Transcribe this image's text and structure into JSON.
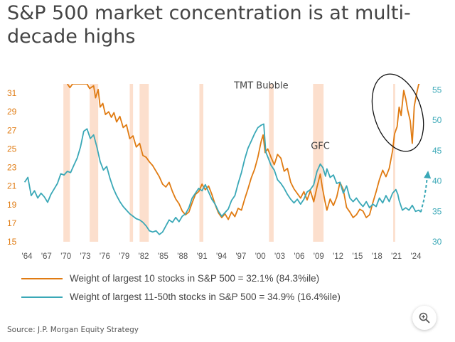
{
  "title": "S&P 500 market concentration is at multi-decade highs",
  "source": "Source: J.P. Morgan Equity Strategy",
  "legend": [
    {
      "label": "Weight of largest 10 stocks in S&P 500 = 32.1% (84.3%ile)",
      "color": "#e07b12"
    },
    {
      "label": "Weight of largest 11-50th stocks in S&P 500 = 34.9% (16.4%ile)",
      "color": "#3aa8b7"
    }
  ],
  "zoom": {
    "icon": "zoom-in-icon"
  },
  "chart_data": {
    "type": "line",
    "x_tick_labels": [
      "'64",
      "'67",
      "'70",
      "'73",
      "'76",
      "'79",
      "'82",
      "'85",
      "'88",
      "'91",
      "'94",
      "'97",
      "'00",
      "'03",
      "'06",
      "'09",
      "'12",
      "'15",
      "'18",
      "'21",
      "'24"
    ],
    "xlim": [
      1963.5,
      2025.5
    ],
    "y_left": {
      "ticks": [
        15,
        17,
        19,
        21,
        23,
        25,
        27,
        29,
        31
      ],
      "ylim": [
        15,
        32
      ],
      "color": "#e07b12"
    },
    "y_right": {
      "ticks": [
        30,
        35,
        40,
        45,
        50,
        55
      ],
      "ylim": [
        30,
        56
      ],
      "color": "#3aa8b7"
    },
    "recession_bands": [
      [
        1969.9,
        1970.9
      ],
      [
        1973.9,
        1975.2
      ],
      [
        1980.0,
        1980.5
      ],
      [
        1981.5,
        1982.9
      ],
      [
        1990.6,
        1991.2
      ],
      [
        2001.2,
        2001.9
      ],
      [
        2007.9,
        2009.5
      ],
      [
        2020.1,
        2020.4
      ]
    ],
    "annotations": [
      {
        "text": "TMT Bubble",
        "x": 2000,
        "y": 31.5
      },
      {
        "text": "GFC",
        "x": 2009,
        "y": 25
      }
    ],
    "series": [
      {
        "name": "Weight of largest 10 stocks in S&P 500",
        "axis": "left",
        "color": "#e07b12",
        "points": [
          [
            1970.5,
            32
          ],
          [
            1970.9,
            31.6
          ],
          [
            1971.3,
            32
          ],
          [
            1973.5,
            32
          ],
          [
            1973.9,
            31.5
          ],
          [
            1974.5,
            31.8
          ],
          [
            1974.8,
            30.5
          ],
          [
            1975.2,
            31.4
          ],
          [
            1975.5,
            29.5
          ],
          [
            1975.9,
            29.9
          ],
          [
            1976.3,
            28.7
          ],
          [
            1976.8,
            29.0
          ],
          [
            1977.2,
            28.4
          ],
          [
            1977.6,
            28.9
          ],
          [
            1978.0,
            27.9
          ],
          [
            1978.5,
            28.5
          ],
          [
            1979.0,
            27.3
          ],
          [
            1979.5,
            27.6
          ],
          [
            1980.0,
            26.1
          ],
          [
            1980.5,
            26.4
          ],
          [
            1981.0,
            25.2
          ],
          [
            1981.5,
            25.6
          ],
          [
            1982.0,
            24.3
          ],
          [
            1982.5,
            24.1
          ],
          [
            1983.0,
            23.6
          ],
          [
            1983.5,
            23.2
          ],
          [
            1984.0,
            22.6
          ],
          [
            1984.5,
            22.0
          ],
          [
            1985.0,
            21.2
          ],
          [
            1985.5,
            20.9
          ],
          [
            1986.0,
            21.4
          ],
          [
            1986.5,
            20.4
          ],
          [
            1987.0,
            19.6
          ],
          [
            1987.5,
            19.1
          ],
          [
            1988.0,
            18.3
          ],
          [
            1988.5,
            17.9
          ],
          [
            1989.0,
            18.2
          ],
          [
            1989.5,
            19.2
          ],
          [
            1990.0,
            20.1
          ],
          [
            1990.5,
            20.4
          ],
          [
            1991.0,
            21.2
          ],
          [
            1991.5,
            20.6
          ],
          [
            1992.0,
            21.0
          ],
          [
            1992.5,
            20.1
          ],
          [
            1993.0,
            19.0
          ],
          [
            1993.5,
            18.1
          ],
          [
            1994.0,
            17.6
          ],
          [
            1994.5,
            18.0
          ],
          [
            1995.0,
            17.4
          ],
          [
            1995.5,
            18.2
          ],
          [
            1996.0,
            17.7
          ],
          [
            1996.5,
            18.6
          ],
          [
            1997.0,
            18.4
          ],
          [
            1997.5,
            19.6
          ],
          [
            1998.0,
            20.7
          ],
          [
            1998.5,
            21.9
          ],
          [
            1999.0,
            22.8
          ],
          [
            1999.5,
            24.1
          ],
          [
            2000.0,
            25.8
          ],
          [
            2000.3,
            26.5
          ],
          [
            2000.6,
            24.6
          ],
          [
            2001.0,
            25.0
          ],
          [
            2001.5,
            24.1
          ],
          [
            2002.0,
            23.3
          ],
          [
            2002.5,
            24.4
          ],
          [
            2003.0,
            24.0
          ],
          [
            2003.5,
            22.6
          ],
          [
            2004.0,
            22.9
          ],
          [
            2004.5,
            21.4
          ],
          [
            2005.0,
            20.7
          ],
          [
            2005.5,
            20.2
          ],
          [
            2006.0,
            19.7
          ],
          [
            2006.5,
            20.4
          ],
          [
            2007.0,
            19.5
          ],
          [
            2007.5,
            20.5
          ],
          [
            2008.0,
            19.3
          ],
          [
            2008.5,
            20.9
          ],
          [
            2009.0,
            22.3
          ],
          [
            2009.3,
            20.9
          ],
          [
            2009.7,
            19.4
          ],
          [
            2010.0,
            18.4
          ],
          [
            2010.5,
            19.6
          ],
          [
            2011.0,
            18.9
          ],
          [
            2011.5,
            19.8
          ],
          [
            2012.0,
            21.4
          ],
          [
            2012.5,
            20.6
          ],
          [
            2013.0,
            18.7
          ],
          [
            2013.5,
            18.2
          ],
          [
            2014.0,
            17.6
          ],
          [
            2014.5,
            17.9
          ],
          [
            2015.0,
            18.5
          ],
          [
            2015.5,
            18.3
          ],
          [
            2016.0,
            17.6
          ],
          [
            2016.5,
            17.9
          ],
          [
            2017.0,
            19.2
          ],
          [
            2017.5,
            20.4
          ],
          [
            2018.0,
            21.7
          ],
          [
            2018.5,
            22.7
          ],
          [
            2019.0,
            22.0
          ],
          [
            2019.5,
            22.9
          ],
          [
            2020.0,
            24.8
          ],
          [
            2020.3,
            26.6
          ],
          [
            2020.7,
            27.4
          ],
          [
            2021.0,
            29.5
          ],
          [
            2021.3,
            28.6
          ],
          [
            2021.7,
            31.3
          ],
          [
            2022.0,
            30.4
          ],
          [
            2022.3,
            29.2
          ],
          [
            2022.7,
            28.0
          ],
          [
            2023.0,
            25.6
          ],
          [
            2023.3,
            29.6
          ],
          [
            2023.7,
            31.1
          ],
          [
            2024.0,
            32.0
          ],
          [
            2024.3,
            32.1
          ]
        ]
      },
      {
        "name": "Weight of largest 11-50th stocks in S&P 500",
        "axis": "right",
        "color": "#3aa8b7",
        "points": [
          [
            1964.0,
            39.8
          ],
          [
            1964.5,
            40.6
          ],
          [
            1965.0,
            37.6
          ],
          [
            1965.5,
            38.4
          ],
          [
            1966.0,
            37.2
          ],
          [
            1966.5,
            38.0
          ],
          [
            1967.0,
            37.4
          ],
          [
            1967.5,
            36.5
          ],
          [
            1968.0,
            37.8
          ],
          [
            1968.5,
            38.7
          ],
          [
            1969.0,
            39.6
          ],
          [
            1969.5,
            41.2
          ],
          [
            1970.0,
            41.0
          ],
          [
            1970.5,
            41.6
          ],
          [
            1971.0,
            41.4
          ],
          [
            1971.5,
            42.6
          ],
          [
            1972.0,
            43.8
          ],
          [
            1972.5,
            45.6
          ],
          [
            1973.0,
            48.2
          ],
          [
            1973.5,
            48.6
          ],
          [
            1974.0,
            47.0
          ],
          [
            1974.5,
            47.6
          ],
          [
            1975.0,
            45.6
          ],
          [
            1975.5,
            43.2
          ],
          [
            1976.0,
            41.8
          ],
          [
            1976.5,
            42.4
          ],
          [
            1977.0,
            40.4
          ],
          [
            1977.5,
            38.8
          ],
          [
            1978.0,
            37.6
          ],
          [
            1978.5,
            36.6
          ],
          [
            1979.0,
            35.8
          ],
          [
            1979.5,
            35.2
          ],
          [
            1980.0,
            34.6
          ],
          [
            1980.5,
            34.2
          ],
          [
            1981.0,
            33.8
          ],
          [
            1981.5,
            33.6
          ],
          [
            1982.0,
            33.2
          ],
          [
            1982.5,
            32.6
          ],
          [
            1983.0,
            31.8
          ],
          [
            1983.5,
            31.6
          ],
          [
            1984.0,
            31.8
          ],
          [
            1984.5,
            31.2
          ],
          [
            1985.0,
            31.6
          ],
          [
            1985.5,
            32.6
          ],
          [
            1986.0,
            33.6
          ],
          [
            1986.5,
            33.2
          ],
          [
            1987.0,
            34.0
          ],
          [
            1987.5,
            33.3
          ],
          [
            1988.0,
            34.2
          ],
          [
            1988.5,
            34.6
          ],
          [
            1989.0,
            35.6
          ],
          [
            1989.5,
            37.2
          ],
          [
            1990.0,
            38.0
          ],
          [
            1990.5,
            38.8
          ],
          [
            1991.0,
            38.4
          ],
          [
            1991.5,
            39.4
          ],
          [
            1992.0,
            38.2
          ],
          [
            1992.5,
            37.0
          ],
          [
            1993.0,
            36.2
          ],
          [
            1993.5,
            35.0
          ],
          [
            1994.0,
            34.2
          ],
          [
            1994.5,
            34.8
          ],
          [
            1995.0,
            35.4
          ],
          [
            1995.5,
            36.8
          ],
          [
            1996.0,
            37.6
          ],
          [
            1996.5,
            39.6
          ],
          [
            1997.0,
            41.4
          ],
          [
            1997.5,
            43.6
          ],
          [
            1998.0,
            45.4
          ],
          [
            1998.5,
            46.6
          ],
          [
            1999.0,
            47.8
          ],
          [
            1999.5,
            48.8
          ],
          [
            2000.0,
            49.2
          ],
          [
            2000.4,
            49.4
          ],
          [
            2000.7,
            44.8
          ],
          [
            2001.0,
            44.0
          ],
          [
            2001.5,
            42.6
          ],
          [
            2002.0,
            41.8
          ],
          [
            2002.5,
            40.2
          ],
          [
            2003.0,
            39.6
          ],
          [
            2003.5,
            38.8
          ],
          [
            2004.0,
            37.8
          ],
          [
            2004.5,
            37.0
          ],
          [
            2005.0,
            36.4
          ],
          [
            2005.5,
            37.0
          ],
          [
            2006.0,
            36.2
          ],
          [
            2006.5,
            37.0
          ],
          [
            2007.0,
            38.2
          ],
          [
            2007.5,
            38.6
          ],
          [
            2008.0,
            39.4
          ],
          [
            2008.5,
            41.6
          ],
          [
            2009.0,
            42.8
          ],
          [
            2009.4,
            42.2
          ],
          [
            2009.8,
            40.8
          ],
          [
            2010.0,
            42.0
          ],
          [
            2010.5,
            40.6
          ],
          [
            2011.0,
            41.0
          ],
          [
            2011.5,
            39.6
          ],
          [
            2012.0,
            39.8
          ],
          [
            2012.5,
            38.0
          ],
          [
            2013.0,
            39.2
          ],
          [
            2013.5,
            37.2
          ],
          [
            2014.0,
            36.6
          ],
          [
            2014.5,
            37.2
          ],
          [
            2015.0,
            36.4
          ],
          [
            2015.5,
            35.8
          ],
          [
            2016.0,
            36.6
          ],
          [
            2016.5,
            35.6
          ],
          [
            2017.0,
            36.2
          ],
          [
            2017.5,
            35.8
          ],
          [
            2018.0,
            37.2
          ],
          [
            2018.5,
            36.4
          ],
          [
            2019.0,
            37.6
          ],
          [
            2019.5,
            36.6
          ],
          [
            2020.0,
            38.0
          ],
          [
            2020.5,
            38.6
          ],
          [
            2020.8,
            37.8
          ],
          [
            2021.0,
            36.8
          ],
          [
            2021.5,
            35.2
          ],
          [
            2022.0,
            35.6
          ],
          [
            2022.5,
            35.2
          ],
          [
            2023.0,
            36.0
          ],
          [
            2023.5,
            35.0
          ],
          [
            2024.0,
            35.2
          ],
          [
            2024.3,
            34.9
          ]
        ]
      }
    ],
    "projection": {
      "axis": "right",
      "color": "#3aa8b7",
      "points": [
        [
          2024.3,
          34.9
        ],
        [
          2024.8,
          37.0
        ],
        [
          2025.1,
          39.0
        ],
        [
          2025.3,
          41.0
        ]
      ]
    },
    "highlight_ellipse": {
      "center": [
        2020.8,
        28.9
      ],
      "rx_years": 3.6,
      "ry_units": 4.3
    }
  }
}
